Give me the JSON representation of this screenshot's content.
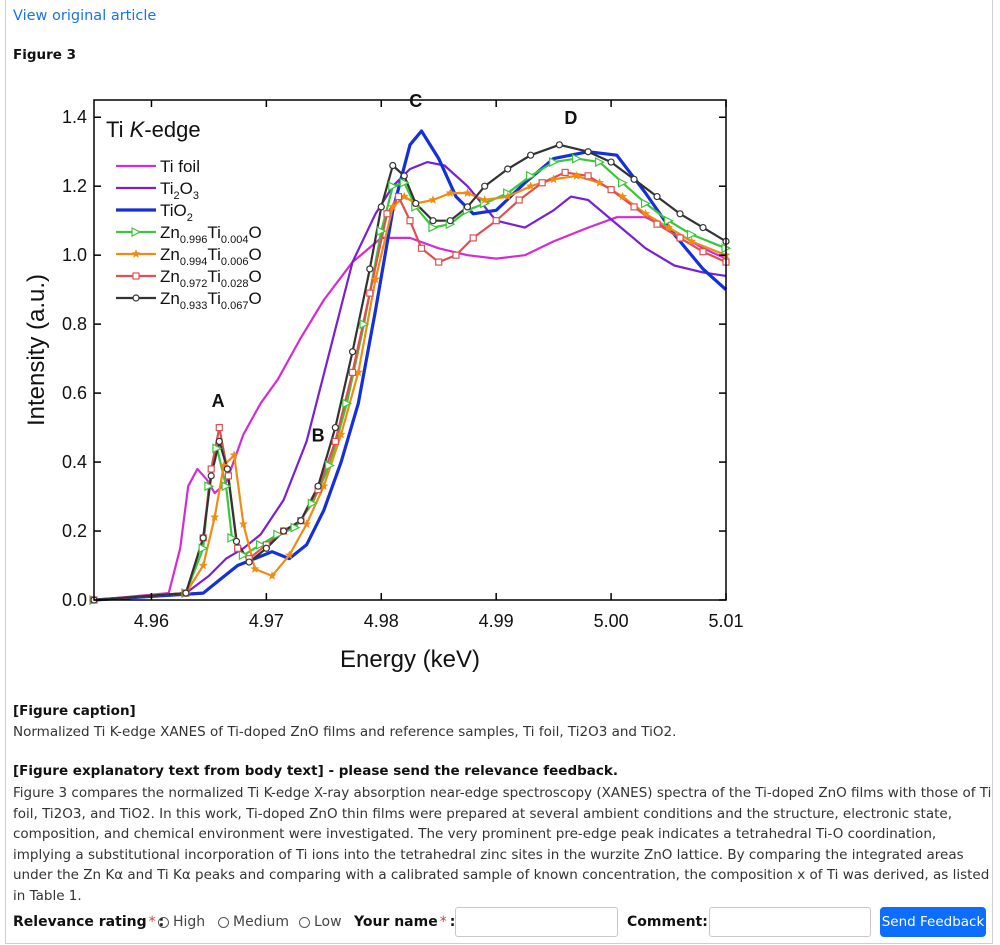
{
  "header": {
    "link_text": "View original article",
    "figure_label": "Figure 3"
  },
  "chart_data": {
    "type": "line",
    "title": "Ti K-edge",
    "xlabel": "Energy (keV)",
    "ylabel": "Intensity (a.u.)",
    "xlim": [
      4.955,
      5.01
    ],
    "ylim": [
      0.0,
      1.45
    ],
    "xticks": [
      "4.96",
      "4.97",
      "4.98",
      "4.99",
      "5.00",
      "5.01"
    ],
    "yticks": [
      "0.0",
      "0.2",
      "0.4",
      "0.6",
      "0.8",
      "1.0",
      "1.2",
      "1.4"
    ],
    "peak_labels": [
      {
        "text": "A",
        "x": 4.9658,
        "y": 0.56
      },
      {
        "text": "B",
        "x": 4.9745,
        "y": 0.46
      },
      {
        "text": "C",
        "x": 4.983,
        "y": 1.43
      },
      {
        "text": "D",
        "x": 4.9965,
        "y": 1.38
      }
    ],
    "series": [
      {
        "key": "ti_foil",
        "name": "Ti foil",
        "name_base": "Ti foil",
        "name_sub": "",
        "color": "#d62ad6",
        "marker": "none",
        "x": [
          4.955,
          4.9615,
          4.9625,
          4.9632,
          4.964,
          4.9648,
          4.9655,
          4.9665,
          4.968,
          4.9695,
          4.971,
          4.973,
          4.975,
          4.9775,
          4.98,
          4.9825,
          4.985,
          4.9875,
          4.99,
          4.9925,
          4.995,
          4.998,
          5.0005,
          5.003,
          5.0055,
          5.008,
          5.01
        ],
        "y": [
          0.0,
          0.02,
          0.15,
          0.33,
          0.38,
          0.35,
          0.31,
          0.34,
          0.48,
          0.57,
          0.64,
          0.76,
          0.87,
          0.98,
          1.05,
          1.05,
          1.02,
          1.0,
          0.99,
          1.0,
          1.04,
          1.08,
          1.11,
          1.11,
          1.07,
          1.02,
          0.99
        ]
      },
      {
        "key": "ti2o3",
        "name": "Ti2O3",
        "name_base": "Ti",
        "name_sub": "2",
        "name_tail": "O",
        "name_sub2": "3",
        "color": "#7a1fd6",
        "marker": "none",
        "x": [
          4.955,
          4.963,
          4.965,
          4.9665,
          4.968,
          4.9695,
          4.9715,
          4.9735,
          4.9755,
          4.9775,
          4.9795,
          4.981,
          4.9825,
          4.984,
          4.9855,
          4.9875,
          4.99,
          4.9925,
          4.995,
          4.9965,
          4.998,
          5.0005,
          5.003,
          5.0055,
          5.008,
          5.01
        ],
        "y": [
          0.0,
          0.02,
          0.07,
          0.12,
          0.15,
          0.19,
          0.29,
          0.46,
          0.72,
          0.98,
          1.12,
          1.2,
          1.25,
          1.27,
          1.26,
          1.2,
          1.1,
          1.08,
          1.13,
          1.17,
          1.16,
          1.09,
          1.02,
          0.97,
          0.95,
          0.94
        ]
      },
      {
        "key": "tio2",
        "name": "TiO2",
        "name_base": "TiO",
        "name_sub": "2",
        "color": "#1530d8",
        "marker": "none",
        "x": [
          4.955,
          4.9645,
          4.966,
          4.9675,
          4.969,
          4.9705,
          4.972,
          4.9735,
          4.975,
          4.9765,
          4.978,
          4.9795,
          4.981,
          4.9825,
          4.9835,
          4.985,
          4.9865,
          4.988,
          4.99,
          4.9925,
          4.995,
          4.998,
          5.0005,
          5.003,
          5.0055,
          5.008,
          5.01
        ],
        "y": [
          0.0,
          0.02,
          0.06,
          0.1,
          0.12,
          0.14,
          0.12,
          0.16,
          0.26,
          0.4,
          0.57,
          0.84,
          1.13,
          1.32,
          1.36,
          1.28,
          1.17,
          1.12,
          1.13,
          1.21,
          1.28,
          1.3,
          1.29,
          1.18,
          1.06,
          0.96,
          0.9
        ]
      },
      {
        "key": "zn996",
        "name": "Zn0.996Ti0.004O",
        "name_base": "Zn",
        "name_sub": "0.996",
        "name_tail": "Ti",
        "name_sub2": "0.004",
        "name_end": "O",
        "color": "#39c839",
        "marker": "triangle",
        "x": [
          4.955,
          4.963,
          4.9645,
          4.965,
          4.9657,
          4.9665,
          4.967,
          4.968,
          4.9695,
          4.971,
          4.9725,
          4.974,
          4.9755,
          4.977,
          4.9785,
          4.98,
          4.981,
          4.982,
          4.983,
          4.9845,
          4.986,
          4.9875,
          4.989,
          4.991,
          4.993,
          4.995,
          4.997,
          4.999,
          5.001,
          5.003,
          5.005,
          5.007,
          5.01
        ],
        "y": [
          0.0,
          0.02,
          0.15,
          0.33,
          0.44,
          0.33,
          0.18,
          0.13,
          0.16,
          0.19,
          0.21,
          0.28,
          0.39,
          0.57,
          0.8,
          1.07,
          1.2,
          1.21,
          1.14,
          1.08,
          1.09,
          1.13,
          1.15,
          1.18,
          1.23,
          1.27,
          1.28,
          1.27,
          1.21,
          1.15,
          1.1,
          1.06,
          1.02
        ]
      },
      {
        "key": "zn994",
        "name": "Zn0.994Ti0.006O",
        "name_base": "Zn",
        "name_sub": "0.994",
        "name_tail": "Ti",
        "name_sub2": "0.006",
        "name_end": "O",
        "color": "#f08c14",
        "marker": "star",
        "x": [
          4.955,
          4.963,
          4.9645,
          4.9655,
          4.9663,
          4.9672,
          4.968,
          4.969,
          4.9705,
          4.972,
          4.9735,
          4.975,
          4.9765,
          4.978,
          4.9795,
          4.981,
          4.982,
          4.983,
          4.9845,
          4.986,
          4.9875,
          4.989,
          4.991,
          4.993,
          4.995,
          4.997,
          4.999,
          5.001,
          5.003,
          5.005,
          5.007,
          5.01
        ],
        "y": [
          0.0,
          0.02,
          0.1,
          0.24,
          0.39,
          0.42,
          0.22,
          0.09,
          0.07,
          0.13,
          0.22,
          0.33,
          0.48,
          0.66,
          0.93,
          1.14,
          1.17,
          1.15,
          1.16,
          1.18,
          1.18,
          1.16,
          1.17,
          1.2,
          1.22,
          1.23,
          1.21,
          1.17,
          1.12,
          1.08,
          1.04,
          1.0
        ]
      },
      {
        "key": "zn972",
        "name": "Zn0.972Ti0.028O",
        "name_base": "Zn",
        "name_sub": "0.972",
        "name_tail": "Ti",
        "name_sub2": "0.028",
        "name_end": "O",
        "color": "#e05050",
        "marker": "square",
        "x": [
          4.955,
          4.963,
          4.9645,
          4.9652,
          4.9659,
          4.9667,
          4.9675,
          4.9685,
          4.97,
          4.9715,
          4.973,
          4.9745,
          4.976,
          4.9775,
          4.979,
          4.9805,
          4.9815,
          4.9825,
          4.9835,
          4.985,
          4.9865,
          4.988,
          4.99,
          4.992,
          4.994,
          4.996,
          4.998,
          5.0,
          5.002,
          5.004,
          5.006,
          5.008,
          5.01
        ],
        "y": [
          0.0,
          0.02,
          0.18,
          0.38,
          0.5,
          0.36,
          0.15,
          0.12,
          0.16,
          0.2,
          0.23,
          0.32,
          0.46,
          0.66,
          0.89,
          1.12,
          1.17,
          1.1,
          1.02,
          0.98,
          1.0,
          1.05,
          1.1,
          1.16,
          1.21,
          1.24,
          1.23,
          1.19,
          1.14,
          1.09,
          1.05,
          1.01,
          0.98
        ]
      },
      {
        "key": "zn933",
        "name": "Zn0.933Ti0.067O",
        "name_base": "Zn",
        "name_sub": "0.933",
        "name_tail": "Ti",
        "name_sub2": "0.067",
        "name_end": "O",
        "color": "#333333",
        "marker": "circle",
        "x": [
          4.955,
          4.963,
          4.9645,
          4.9652,
          4.9659,
          4.9666,
          4.9674,
          4.9685,
          4.97,
          4.9715,
          4.973,
          4.9745,
          4.976,
          4.9775,
          4.979,
          4.98,
          4.981,
          4.982,
          4.983,
          4.9845,
          4.986,
          4.9875,
          4.989,
          4.991,
          4.993,
          4.9955,
          4.998,
          5.0,
          5.002,
          5.004,
          5.006,
          5.008,
          5.01
        ],
        "y": [
          0.0,
          0.02,
          0.18,
          0.36,
          0.46,
          0.38,
          0.17,
          0.11,
          0.15,
          0.2,
          0.23,
          0.33,
          0.5,
          0.72,
          0.96,
          1.14,
          1.26,
          1.23,
          1.15,
          1.1,
          1.1,
          1.14,
          1.2,
          1.25,
          1.29,
          1.32,
          1.3,
          1.27,
          1.22,
          1.17,
          1.12,
          1.08,
          1.04
        ]
      }
    ]
  },
  "caption": {
    "heading": "[Figure caption]",
    "text": "Normalized Ti K-edge XANES of Ti-doped ZnO films and reference samples, Ti foil, Ti2O3 and TiO2."
  },
  "explanatory": {
    "heading": "[Figure explanatory text from body text] - please send the relevance feedback.",
    "text": "Figure 3 compares the normalized Ti K-edge X-ray absorption near-edge spectroscopy (XANES) spectra of the Ti-doped ZnO films with those of Ti foil, Ti2O3, and TiO2. In this work, Ti-doped ZnO thin films were prepared at several ambient conditions and the structure, electronic state, composition, and chemical environment were investigated. The very prominent pre-edge peak indicates a tetrahedral Ti-O coordination, implying a substitutional incorporation of Ti ions into the tetrahedral zinc sites in the wurzite ZnO lattice. By comparing the integrated areas under the Zn Kα and Ti Kα peaks and comparing with a calibrated sample of known concentration, the composition x of Ti was derived, as listed in Table 1."
  },
  "feedback": {
    "rating_label": "Relevance rating",
    "required_mark": "*",
    "colon": ":",
    "options": [
      "High",
      "Medium",
      "Low"
    ],
    "name_label": "Your name",
    "name_value": "",
    "comment_label": "Comment:",
    "comment_value": "",
    "send_label": "Send Feedback"
  }
}
